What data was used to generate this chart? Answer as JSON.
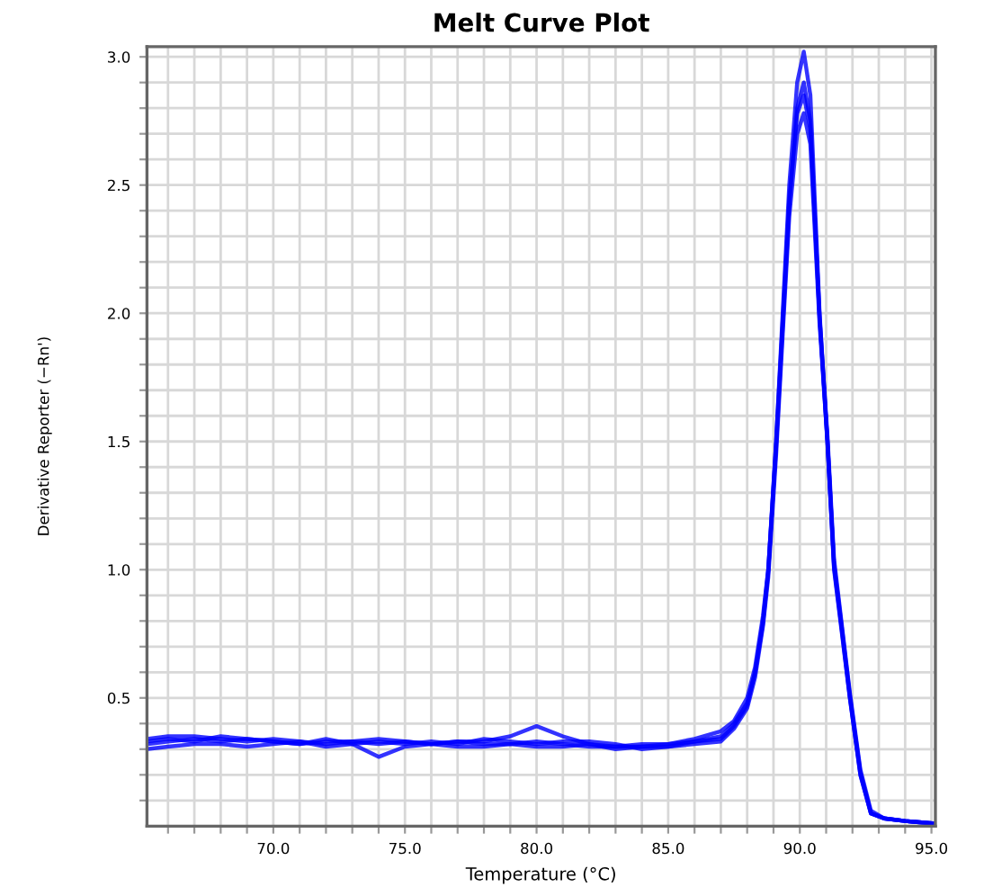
{
  "chart_data": {
    "type": "line",
    "title": "Melt Curve Plot",
    "xlabel": "Temperature (°C)",
    "ylabel": "Derivative Reporter (−Rn')",
    "x": [
      65.2,
      66,
      67,
      68,
      69,
      70,
      71,
      72,
      73,
      74,
      75,
      76,
      77,
      78,
      79,
      80,
      81,
      82,
      83,
      84,
      85,
      86,
      87,
      87.5,
      88,
      88.3,
      88.6,
      88.8,
      89.1,
      89.35,
      89.6,
      89.9,
      90.15,
      90.4,
      90.75,
      91.05,
      91.3,
      91.6,
      91.9,
      92.3,
      92.7,
      93.2,
      94,
      95.1
    ],
    "series": [
      {
        "color": "#0000ff",
        "values": [
          0.34,
          0.35,
          0.35,
          0.34,
          0.33,
          0.34,
          0.33,
          0.32,
          0.33,
          0.34,
          0.33,
          0.32,
          0.33,
          0.32,
          0.32,
          0.33,
          0.32,
          0.31,
          0.31,
          0.32,
          0.32,
          0.33,
          0.35,
          0.4,
          0.48,
          0.6,
          0.8,
          1.0,
          1.5,
          2.0,
          2.5,
          2.9,
          3.02,
          2.85,
          2.0,
          1.5,
          1.0,
          0.75,
          0.5,
          0.2,
          0.05,
          0.03,
          0.02,
          0.01
        ]
      },
      {
        "color": "#0000ff",
        "values": [
          0.32,
          0.33,
          0.34,
          0.33,
          0.34,
          0.33,
          0.32,
          0.33,
          0.33,
          0.32,
          0.33,
          0.32,
          0.33,
          0.33,
          0.35,
          0.39,
          0.35,
          0.32,
          0.31,
          0.31,
          0.32,
          0.34,
          0.37,
          0.41,
          0.5,
          0.62,
          0.82,
          1.0,
          1.48,
          1.95,
          2.42,
          2.8,
          2.9,
          2.75,
          1.98,
          1.52,
          1.04,
          0.78,
          0.52,
          0.22,
          0.06,
          0.03,
          0.02,
          0.01
        ]
      },
      {
        "color": "#0000ff",
        "values": [
          0.3,
          0.31,
          0.32,
          0.32,
          0.31,
          0.32,
          0.33,
          0.31,
          0.32,
          0.27,
          0.31,
          0.32,
          0.31,
          0.31,
          0.32,
          0.31,
          0.31,
          0.32,
          0.3,
          0.31,
          0.31,
          0.32,
          0.33,
          0.38,
          0.46,
          0.58,
          0.78,
          0.97,
          1.45,
          1.92,
          2.38,
          2.7,
          2.78,
          2.66,
          1.96,
          1.5,
          1.02,
          0.77,
          0.51,
          0.21,
          0.05,
          0.03,
          0.02,
          0.01
        ]
      },
      {
        "color": "#0000ff",
        "values": [
          0.33,
          0.34,
          0.33,
          0.35,
          0.34,
          0.33,
          0.32,
          0.34,
          0.32,
          0.33,
          0.32,
          0.33,
          0.32,
          0.34,
          0.33,
          0.32,
          0.33,
          0.33,
          0.32,
          0.3,
          0.31,
          0.33,
          0.34,
          0.39,
          0.47,
          0.6,
          0.79,
          0.99,
          1.5,
          1.97,
          2.45,
          2.78,
          2.85,
          2.72,
          1.99,
          1.49,
          1.01,
          0.76,
          0.5,
          0.2,
          0.05,
          0.03,
          0.02,
          0.01
        ]
      }
    ],
    "xlim": [
      65.2,
      95.15
    ],
    "ylim": [
      0,
      3.04
    ],
    "xticks": [
      {
        "value": 66,
        "label": null
      },
      {
        "value": 67,
        "label": null
      },
      {
        "value": 68,
        "label": null
      },
      {
        "value": 69,
        "label": null
      },
      {
        "value": 70,
        "label": "70.0"
      },
      {
        "value": 71,
        "label": null
      },
      {
        "value": 72,
        "label": null
      },
      {
        "value": 73,
        "label": null
      },
      {
        "value": 74,
        "label": null
      },
      {
        "value": 75,
        "label": "75.0"
      },
      {
        "value": 76,
        "label": null
      },
      {
        "value": 77,
        "label": null
      },
      {
        "value": 78,
        "label": null
      },
      {
        "value": 79,
        "label": null
      },
      {
        "value": 80,
        "label": "80.0"
      },
      {
        "value": 81,
        "label": null
      },
      {
        "value": 82,
        "label": null
      },
      {
        "value": 83,
        "label": null
      },
      {
        "value": 84,
        "label": null
      },
      {
        "value": 85,
        "label": "85.0"
      },
      {
        "value": 86,
        "label": null
      },
      {
        "value": 87,
        "label": null
      },
      {
        "value": 88,
        "label": null
      },
      {
        "value": 89,
        "label": null
      },
      {
        "value": 90,
        "label": "90.0"
      },
      {
        "value": 91,
        "label": null
      },
      {
        "value": 92,
        "label": null
      },
      {
        "value": 93,
        "label": null
      },
      {
        "value": 94,
        "label": null
      },
      {
        "value": 95,
        "label": "95.0"
      }
    ],
    "yticks": [
      {
        "value": 0.1,
        "label": null
      },
      {
        "value": 0.2,
        "label": null
      },
      {
        "value": 0.3,
        "label": null
      },
      {
        "value": 0.4,
        "label": null
      },
      {
        "value": 0.5,
        "label": "0.5"
      },
      {
        "value": 0.6,
        "label": null
      },
      {
        "value": 0.7,
        "label": null
      },
      {
        "value": 0.8,
        "label": null
      },
      {
        "value": 0.9,
        "label": null
      },
      {
        "value": 1.0,
        "label": "1.0"
      },
      {
        "value": 1.1,
        "label": null
      },
      {
        "value": 1.2,
        "label": null
      },
      {
        "value": 1.3,
        "label": null
      },
      {
        "value": 1.4,
        "label": null
      },
      {
        "value": 1.5,
        "label": "1.5"
      },
      {
        "value": 1.6,
        "label": null
      },
      {
        "value": 1.7,
        "label": null
      },
      {
        "value": 1.8,
        "label": null
      },
      {
        "value": 1.9,
        "label": null
      },
      {
        "value": 2.0,
        "label": "2.0"
      },
      {
        "value": 2.1,
        "label": null
      },
      {
        "value": 2.2,
        "label": null
      },
      {
        "value": 2.3,
        "label": null
      },
      {
        "value": 2.4,
        "label": null
      },
      {
        "value": 2.5,
        "label": "2.5"
      },
      {
        "value": 2.6,
        "label": null
      },
      {
        "value": 2.7,
        "label": null
      },
      {
        "value": 2.8,
        "label": null
      },
      {
        "value": 2.9,
        "label": null
      },
      {
        "value": 3.0,
        "label": "3.0"
      }
    ],
    "grid": true,
    "marker": "none",
    "line_style": "solid",
    "legend": false
  }
}
